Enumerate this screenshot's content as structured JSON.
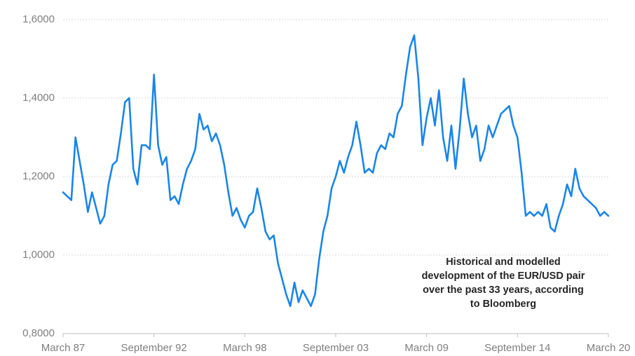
{
  "chart_data": {
    "type": "line",
    "categories": [
      "March 87",
      null,
      null,
      null,
      null,
      null,
      null,
      null,
      null,
      null,
      null,
      null,
      null,
      null,
      null,
      null,
      null,
      null,
      null,
      null,
      null,
      null,
      "September 92",
      null,
      null,
      null,
      null,
      null,
      null,
      null,
      null,
      null,
      null,
      null,
      null,
      null,
      null,
      null,
      null,
      null,
      null,
      null,
      null,
      null,
      "March 98",
      null,
      null,
      null,
      null,
      null,
      null,
      null,
      null,
      null,
      null,
      null,
      null,
      null,
      null,
      null,
      null,
      null,
      null,
      null,
      null,
      null,
      "September 03",
      null,
      null,
      null,
      null,
      null,
      null,
      null,
      null,
      null,
      null,
      null,
      null,
      null,
      null,
      null,
      null,
      null,
      null,
      null,
      null,
      null,
      "March 09",
      null,
      null,
      null,
      null,
      null,
      null,
      null,
      null,
      null,
      null,
      null,
      null,
      null,
      null,
      null,
      null,
      null,
      null,
      null,
      null,
      null,
      "September 14",
      null,
      null,
      null,
      null,
      null,
      null,
      null,
      null,
      null,
      null,
      null,
      null,
      null,
      null,
      null,
      null,
      null,
      null,
      null,
      null,
      null,
      "March 20"
    ],
    "series": [
      {
        "color": "#1a85e8",
        "values": [
          1.16,
          1.15,
          1.14,
          1.3,
          1.24,
          1.18,
          1.11,
          1.16,
          1.12,
          1.08,
          1.1,
          1.18,
          1.23,
          1.24,
          1.31,
          1.39,
          1.4,
          1.22,
          1.18,
          1.28,
          1.28,
          1.27,
          1.46,
          1.28,
          1.23,
          1.25,
          1.14,
          1.15,
          1.13,
          1.18,
          1.22,
          1.24,
          1.27,
          1.36,
          1.32,
          1.33,
          1.29,
          1.31,
          1.28,
          1.23,
          1.16,
          1.1,
          1.12,
          1.09,
          1.07,
          1.1,
          1.11,
          1.17,
          1.12,
          1.06,
          1.04,
          1.05,
          0.98,
          0.94,
          0.9,
          0.87,
          0.93,
          0.88,
          0.91,
          0.89,
          0.87,
          0.9,
          0.99,
          1.06,
          1.1,
          1.17,
          1.2,
          1.24,
          1.21,
          1.25,
          1.28,
          1.34,
          1.28,
          1.21,
          1.22,
          1.21,
          1.26,
          1.28,
          1.27,
          1.31,
          1.3,
          1.36,
          1.38,
          1.46,
          1.53,
          1.56,
          1.45,
          1.28,
          1.35,
          1.4,
          1.33,
          1.42,
          1.3,
          1.24,
          1.33,
          1.22,
          1.32,
          1.45,
          1.36,
          1.3,
          1.33,
          1.24,
          1.27,
          1.33,
          1.3,
          1.33,
          1.36,
          1.37,
          1.38,
          1.33,
          1.3,
          1.21,
          1.1,
          1.11,
          1.1,
          1.11,
          1.1,
          1.13,
          1.07,
          1.06,
          1.1,
          1.13,
          1.18,
          1.15,
          1.22,
          1.17,
          1.15,
          1.14,
          1.13,
          1.12,
          1.1,
          1.11,
          1.1
        ]
      }
    ],
    "ylim": [
      0.8,
      1.6
    ],
    "yticks": [
      {
        "value": 0.8,
        "label": "0,8000"
      },
      {
        "value": 1.0,
        "label": "1,0000"
      },
      {
        "value": 1.2,
        "label": "1,2000"
      },
      {
        "value": 1.4,
        "label": "1,4000"
      },
      {
        "value": 1.6,
        "label": "1,6000"
      }
    ],
    "grid": true,
    "annotation": [
      "Historical and modelled",
      "development of the EUR/USD pair",
      "over the past 33 years, according",
      "to Bloomberg"
    ]
  }
}
